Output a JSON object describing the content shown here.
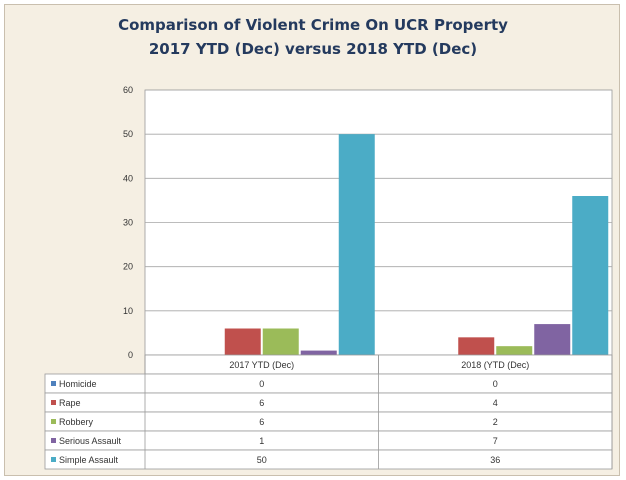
{
  "chart_data": {
    "type": "bar",
    "title": "Comparison of Violent Crime On UCR Property",
    "subtitle": "2017 YTD (Dec) versus 2018 YTD (Dec)",
    "categories": [
      "2017 YTD (Dec)",
      "2018 (YTD (Dec)"
    ],
    "ylim": [
      0,
      60
    ],
    "yticks": [
      0,
      10,
      20,
      30,
      40,
      50,
      60
    ],
    "grid": true,
    "legend": "data-table-below",
    "series": [
      {
        "name": "Homicide",
        "color": "#4f81bd",
        "values": [
          0,
          0
        ]
      },
      {
        "name": "Rape",
        "color": "#c0504d",
        "values": [
          6,
          4
        ]
      },
      {
        "name": "Robbery",
        "color": "#9bbb59",
        "values": [
          6,
          2
        ]
      },
      {
        "name": "Serious Assault",
        "color": "#8064a2",
        "values": [
          1,
          7
        ]
      },
      {
        "name": "Simple Assault",
        "color": "#4bacc6",
        "values": [
          50,
          36
        ]
      }
    ]
  }
}
